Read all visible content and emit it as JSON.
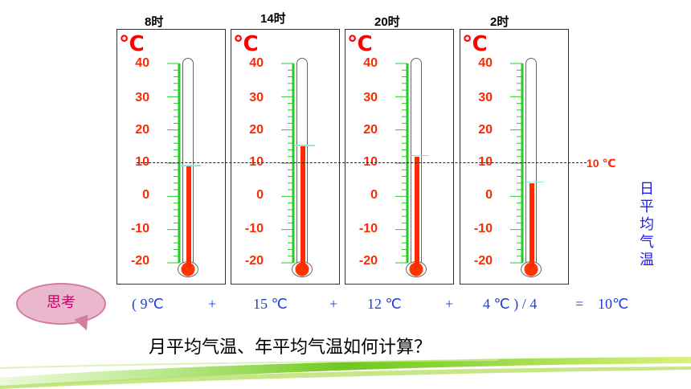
{
  "unit": "℃",
  "scale_labels": [
    "40",
    "30",
    "20",
    "10",
    "0",
    "-10",
    "-20"
  ],
  "thermometers": [
    {
      "time": "8时",
      "value": 9
    },
    {
      "time": "14时",
      "value": 15
    },
    {
      "time": "20时",
      "value": 12
    },
    {
      "time": "2时",
      "value": 4
    }
  ],
  "reference_line": {
    "value": 10,
    "label": "10 ℃"
  },
  "vertical_label": "日平均气温",
  "formula": {
    "t1": "( 9℃",
    "plus1": "+",
    "t2": "15 ℃",
    "plus2": "+",
    "t3": "12 ℃",
    "plus3": "+",
    "t4": "4 ℃ ) /  4",
    "equals": "=",
    "result": "10℃"
  },
  "think_bubble": "思考",
  "question": "月平均气温、年平均气温如何计算？",
  "colors": {
    "scale_green": "#22cc22",
    "mercury_red": "#ff2a00",
    "label_red": "#ff2a00",
    "formula_blue": "#1f3fd8",
    "vertical_blue": "#1c1cff"
  }
}
